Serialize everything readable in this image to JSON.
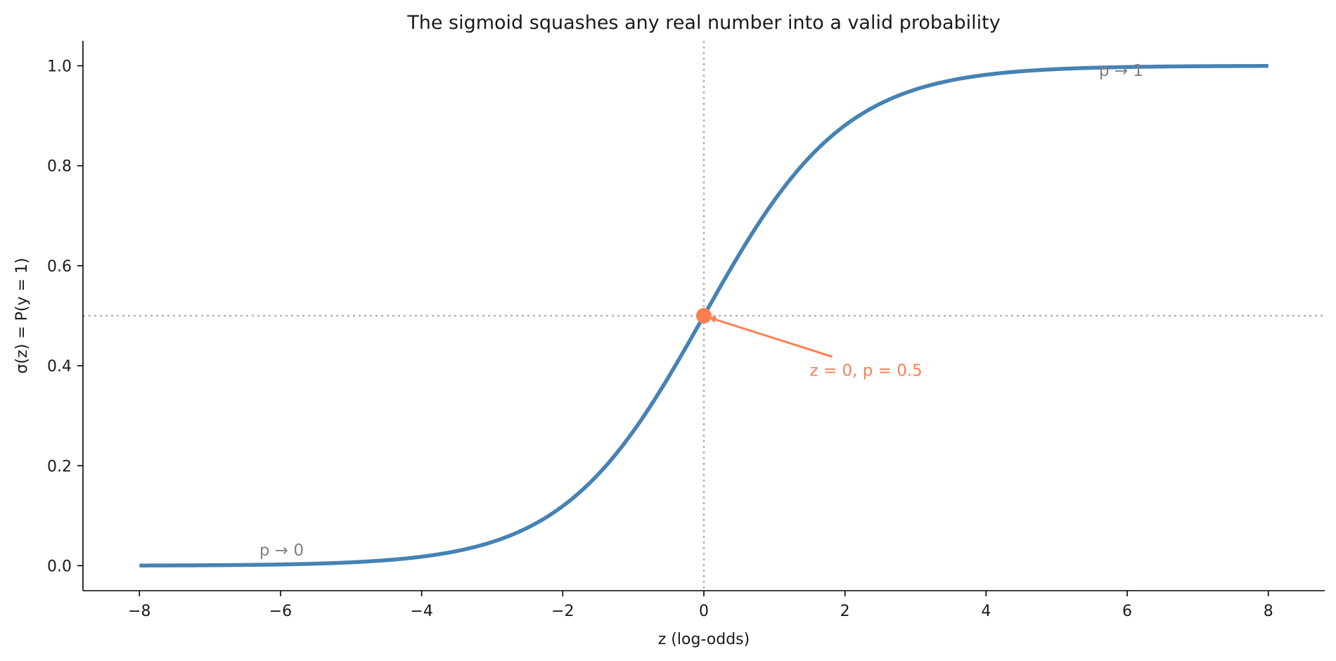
{
  "chart_data": {
    "type": "line",
    "title": "The sigmoid squashes any real number into a valid probability",
    "xlabel": "z (log-odds)",
    "ylabel": "σ(z) = P(y = 1)",
    "xlim": [
      -8.8,
      8.8
    ],
    "ylim": [
      -0.05,
      1.05
    ],
    "x_ticks": [
      -8,
      -6,
      -4,
      -2,
      0,
      2,
      4,
      6,
      8
    ],
    "x_tick_labels": [
      "−8",
      "−6",
      "−4",
      "−2",
      "0",
      "2",
      "4",
      "6",
      "8"
    ],
    "y_ticks": [
      0.0,
      0.2,
      0.4,
      0.6,
      0.8,
      1.0
    ],
    "y_tick_labels": [
      "0.0",
      "0.2",
      "0.4",
      "0.6",
      "0.8",
      "1.0"
    ],
    "grid": false,
    "series": [
      {
        "function": "sigmoid",
        "x_range": [
          -8,
          8
        ],
        "color": "#4682b4",
        "x": [
          -8,
          -7,
          -6,
          -5,
          -4,
          -3,
          -2,
          -1,
          0,
          1,
          2,
          3,
          4,
          5,
          6,
          7,
          8
        ],
        "y": [
          0.0003,
          0.0009,
          0.0025,
          0.0067,
          0.018,
          0.0474,
          0.1192,
          0.2689,
          0.5,
          0.7311,
          0.8808,
          0.9526,
          0.982,
          0.9933,
          0.9975,
          0.9991,
          0.9997
        ]
      }
    ],
    "reference_lines": [
      {
        "axis": "x",
        "value": 0,
        "style": "dotted",
        "color": "#b3b3b3"
      },
      {
        "axis": "y",
        "value": 0.5,
        "style": "dotted",
        "color": "#b3b3b3"
      }
    ],
    "highlight_point": {
      "x": 0,
      "y": 0.5,
      "color": "#ff7f50"
    },
    "annotations": [
      {
        "text": "z = 0, p = 0.5",
        "x": 1.5,
        "y": 0.38,
        "color": "#ff7f50",
        "arrow_to": [
          0,
          0.5
        ]
      },
      {
        "text": "p → 0",
        "x": -6.3,
        "y": 0.02,
        "color": "#808080"
      },
      {
        "text": "p → 1",
        "x": 5.6,
        "y": 0.98,
        "color": "#808080"
      }
    ]
  }
}
